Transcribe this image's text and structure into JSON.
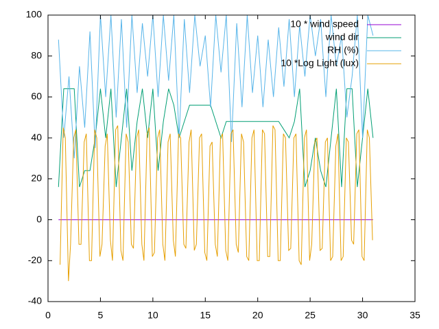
{
  "chart_data": {
    "type": "line",
    "xlim": [
      0,
      35
    ],
    "xticks": [
      0,
      5,
      10,
      15,
      20,
      25,
      30,
      35
    ],
    "ylim": [
      -40,
      100
    ],
    "yticks": [
      -40,
      -20,
      0,
      20,
      40,
      60,
      80,
      100
    ],
    "grid": false,
    "legend": "top right",
    "series": [
      {
        "name": "10 * wind speed",
        "color": "#9400d3",
        "x": [
          1,
          31
        ],
        "values": [
          0,
          0
        ]
      },
      {
        "name": "wind dir",
        "color": "#009e73",
        "x": [
          1,
          1.5,
          2,
          2.5,
          3,
          3.5,
          4,
          4.5,
          5,
          5.5,
          6,
          6.5,
          7,
          7.5,
          8,
          8.5,
          9,
          9.5,
          10,
          10.5,
          11,
          11.5,
          12,
          12.5,
          13,
          13.5,
          14,
          14.5,
          15,
          15.5,
          16,
          16.5,
          17,
          17.5,
          18,
          18.5,
          19,
          19.5,
          20,
          20.5,
          21,
          21.5,
          22,
          22.5,
          23,
          23.5,
          24,
          24.5,
          25,
          25.5,
          26,
          26.5,
          27,
          27.5,
          28,
          28.5,
          29,
          29.5,
          30,
          30.5,
          31
        ],
        "values": [
          16,
          64,
          64,
          64,
          16,
          24,
          24,
          40,
          64,
          40,
          64,
          16,
          40,
          64,
          24,
          48,
          64,
          40,
          64,
          24,
          48,
          64,
          56,
          40,
          48,
          56,
          56,
          56,
          56,
          56,
          48,
          40,
          48,
          48,
          48,
          48,
          48,
          48,
          48,
          48,
          48,
          48,
          48,
          44,
          40,
          48,
          64,
          16,
          24,
          40,
          24,
          16,
          40,
          64,
          16,
          64,
          64,
          16,
          40,
          64,
          40
        ]
      },
      {
        "name": "RH (%)",
        "color": "#56b4e9",
        "x": [
          1,
          1.5,
          2,
          2.5,
          3,
          3.5,
          4,
          4.5,
          5,
          5.5,
          6,
          6.5,
          7,
          7.5,
          8,
          8.5,
          9,
          9.5,
          10,
          10.5,
          11,
          11.5,
          12,
          12.5,
          13,
          13.5,
          14,
          14.5,
          15,
          15.5,
          16,
          16.5,
          17,
          17.5,
          18,
          18.5,
          19,
          19.5,
          20,
          20.5,
          21,
          21.5,
          22,
          22.5,
          23,
          23.5,
          24,
          24.5,
          25,
          25.5,
          26,
          26.5,
          27,
          27.5,
          28,
          28.5,
          29,
          29.5,
          30,
          30.5,
          31
        ],
        "values": [
          88,
          40,
          70,
          30,
          75,
          45,
          92,
          35,
          100,
          60,
          100,
          50,
          98,
          45,
          100,
          62,
          96,
          70,
          100,
          60,
          100,
          68,
          100,
          40,
          98,
          62,
          100,
          75,
          90,
          55,
          100,
          72,
          100,
          38,
          96,
          55,
          100,
          62,
          90,
          55,
          88,
          60,
          94,
          65,
          98,
          60,
          95,
          70,
          100,
          80,
          98,
          60,
          100,
          75,
          90,
          50,
          70,
          100,
          40,
          100,
          90
        ]
      },
      {
        "name": "10 *Log Light (lux)",
        "color": "#e69f00",
        "x": [
          1.15,
          1.45,
          1.65,
          1.95,
          2.15,
          2.45,
          2.65,
          2.95,
          3.15,
          3.45,
          3.65,
          3.95,
          4.15,
          4.45,
          4.65,
          4.95,
          5.15,
          5.45,
          5.65,
          5.95,
          6.15,
          6.45,
          6.65,
          6.95,
          7.15,
          7.45,
          7.65,
          7.95,
          8.15,
          8.45,
          8.65,
          8.95,
          9.15,
          9.45,
          9.65,
          9.95,
          10.15,
          10.45,
          10.65,
          10.95,
          11.15,
          11.45,
          11.65,
          11.95,
          12.15,
          12.45,
          12.65,
          12.95,
          13.15,
          13.45,
          13.65,
          13.95,
          14.15,
          14.45,
          14.65,
          14.95,
          15.15,
          15.45,
          15.65,
          15.95,
          16.15,
          16.45,
          16.65,
          16.95,
          17.15,
          17.45,
          17.65,
          17.95,
          18.15,
          18.45,
          18.65,
          18.95,
          19.15,
          19.45,
          19.65,
          19.95,
          20.15,
          20.45,
          20.65,
          20.95,
          21.15,
          21.45,
          21.65,
          21.95,
          22.15,
          22.45,
          22.65,
          22.95,
          23.15,
          23.45,
          23.65,
          23.95,
          24.15,
          24.45,
          24.65,
          24.95,
          25.15,
          25.45,
          25.65,
          25.95,
          26.15,
          26.45,
          26.65,
          26.95,
          27.15,
          27.45,
          27.65,
          27.95,
          28.15,
          28.45,
          28.65,
          28.95,
          29.15,
          29.45,
          29.65,
          29.95,
          30.15,
          30.45,
          30.65,
          30.95
        ],
        "values": [
          -22,
          45,
          40,
          -30,
          -12,
          40,
          44,
          -12,
          -12,
          38,
          42,
          -20,
          -20,
          44,
          40,
          -18,
          -12,
          36,
          42,
          -10,
          -20,
          44,
          46,
          -15,
          -20,
          42,
          38,
          -12,
          -14,
          40,
          44,
          -12,
          -20,
          42,
          45,
          -18,
          -16,
          40,
          44,
          -12,
          -20,
          38,
          42,
          -10,
          -18,
          42,
          40,
          -12,
          -14,
          38,
          44,
          -15,
          -12,
          40,
          42,
          -16,
          -20,
          36,
          38,
          -12,
          -18,
          40,
          42,
          -15,
          -20,
          42,
          44,
          -12,
          -16,
          42,
          38,
          -18,
          -20,
          40,
          44,
          -20,
          -20,
          44,
          42,
          -18,
          -18,
          46,
          44,
          -20,
          -20,
          42,
          40,
          -15,
          -14,
          40,
          42,
          -20,
          -22,
          40,
          44,
          -20,
          -12,
          38,
          40,
          -15,
          -14,
          38,
          40,
          -20,
          -18,
          36,
          42,
          -20,
          -18,
          40,
          38,
          -10,
          -12,
          42,
          44,
          -18,
          -20,
          44,
          40,
          -10
        ]
      }
    ]
  }
}
